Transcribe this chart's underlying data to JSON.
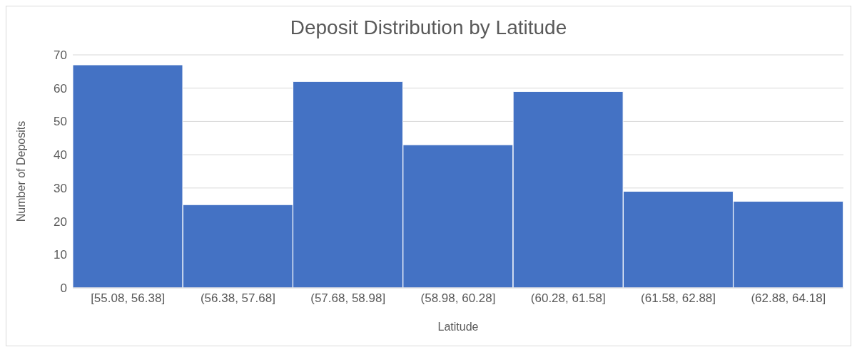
{
  "chart_data": {
    "type": "bar",
    "title": "Deposit Distribution by Latitude",
    "xlabel": "Latitude",
    "ylabel": "Number of Deposits",
    "categories": [
      "[55.08, 56.38]",
      "(56.38, 57.68]",
      "(57.68, 58.98]",
      "(58.98, 60.28]",
      "(60.28, 61.58]",
      "(61.58, 62.88]",
      "(62.88, 64.18]"
    ],
    "values": [
      67,
      25,
      62,
      43,
      59,
      29,
      26
    ],
    "color": "#4472c4",
    "ylim": [
      0,
      70
    ],
    "yticks": [
      0,
      10,
      20,
      30,
      40,
      50,
      60,
      70
    ],
    "grid": "y"
  }
}
